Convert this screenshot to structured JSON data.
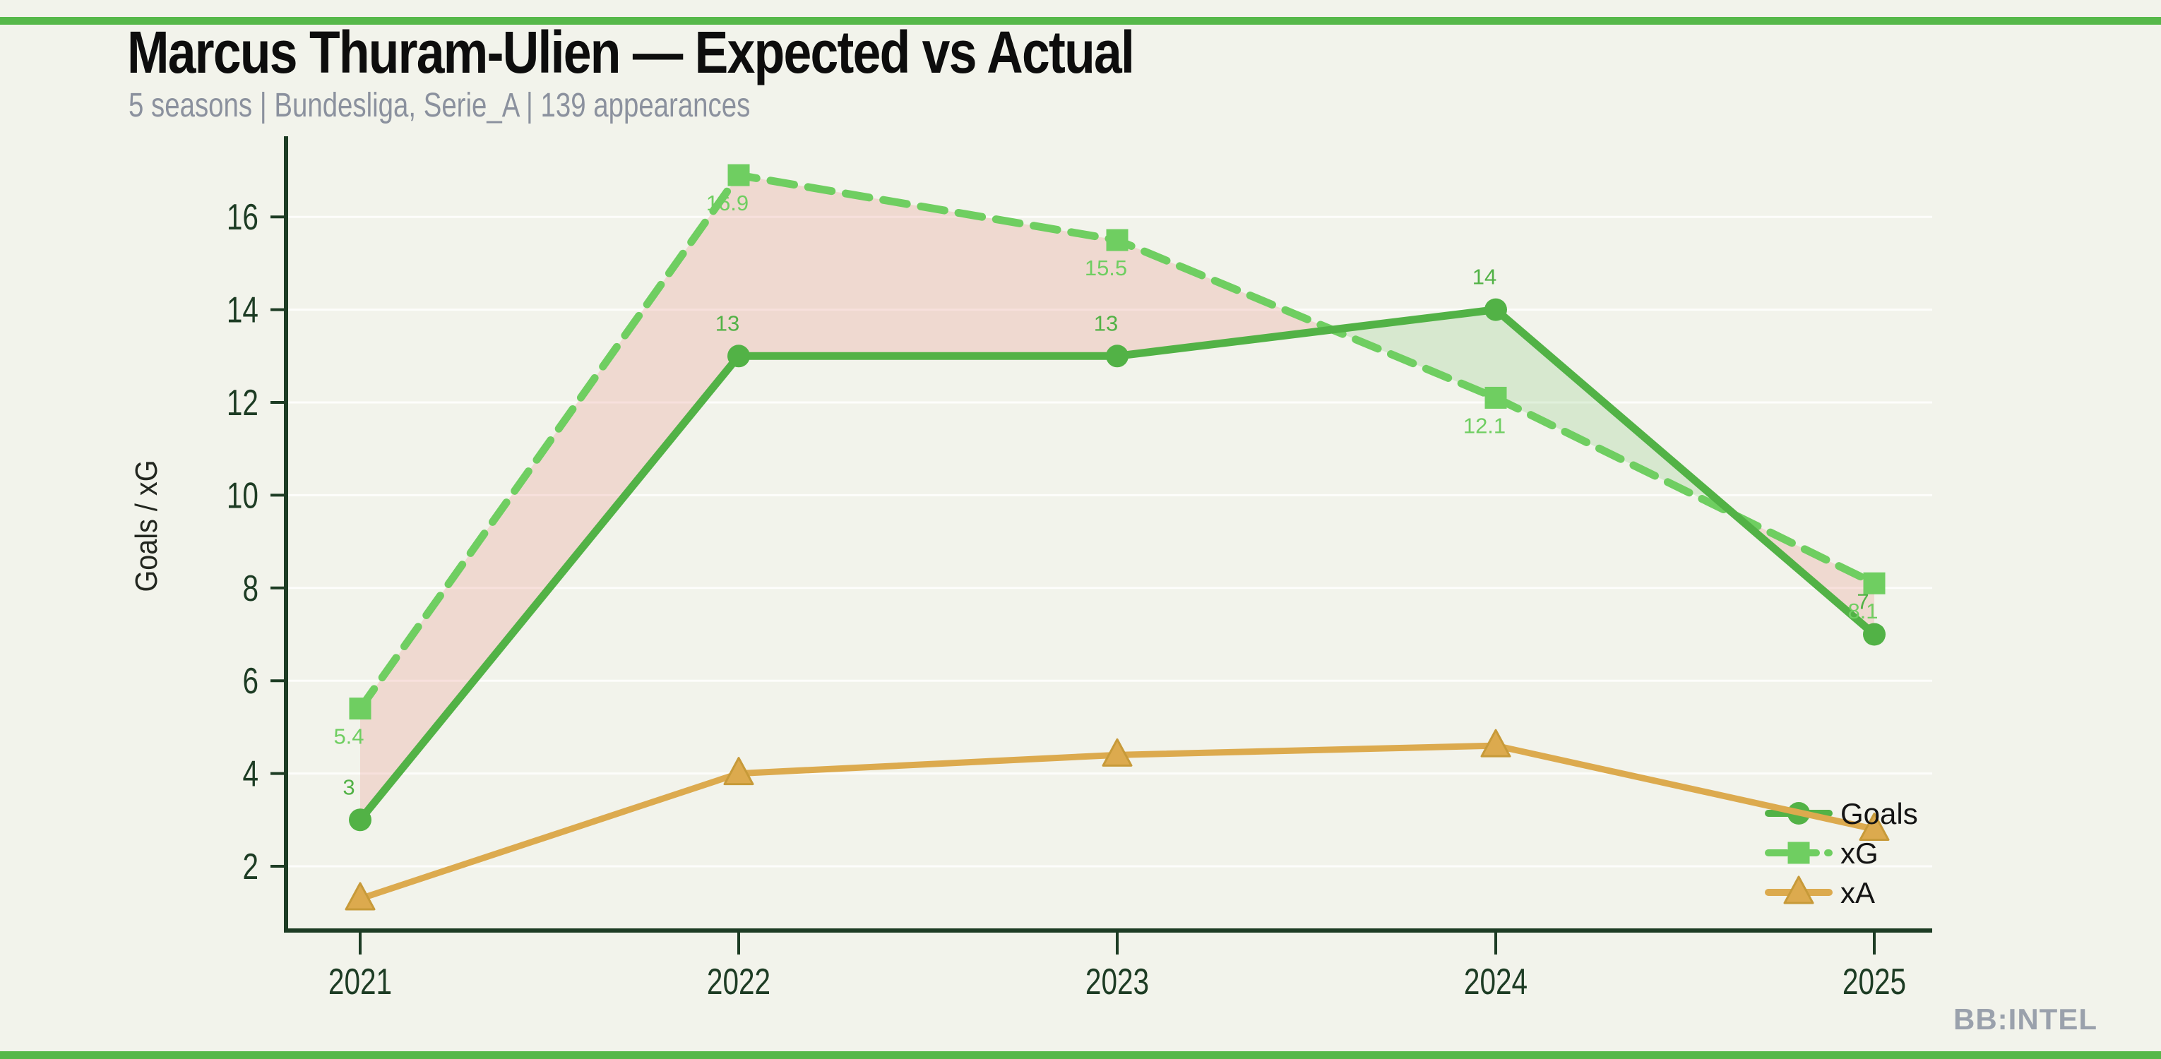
{
  "header": {
    "title": "Marcus Thuram-Ulien — Expected vs Actual",
    "subtitle": "5 seasons | Bundesliga, Serie_A | 139 appearances"
  },
  "footer": {
    "watermark": "BB:INTEL"
  },
  "colors": {
    "background": "#f2f3eb",
    "accent_bar": "#56b84a",
    "goals": "#52b246",
    "xg": "#6fce61",
    "xa": "#dcaa4e",
    "xa_marker_edge": "#c79a39",
    "axis": "#1d3c24",
    "title": "#0d0d0d",
    "subtitle": "#8b919e",
    "watermark": "#9aa1ac",
    "legend_text": "#141414",
    "fill_goals_above_xg": "rgba(110,190,95,0.20)",
    "fill_xg_above_goals": "rgba(233,150,140,0.28)",
    "gridline": "rgba(255,255,255,0.8)"
  },
  "chart_data": {
    "type": "line",
    "title": "Marcus Thuram-Ulien — Expected vs Actual",
    "subtitle": "5 seasons | Bundesliga, Serie_A | 139 appearances",
    "categories": [
      "2021",
      "2022",
      "2023",
      "2024",
      "2025"
    ],
    "series": [
      {
        "name": "Goals",
        "values": [
          3,
          13,
          13,
          14,
          7
        ],
        "labels": [
          "3",
          "13",
          "13",
          "14",
          "7"
        ],
        "label_position": "above",
        "color": "#52b246",
        "marker": "circle",
        "line_style": "solid",
        "line_width": 11
      },
      {
        "name": "xG",
        "values": [
          5.4,
          16.9,
          15.5,
          12.1,
          8.1
        ],
        "labels": [
          "5.4",
          "16.9",
          "15.5",
          "12.1",
          "8.1"
        ],
        "label_position": "below",
        "color": "#6fce61",
        "marker": "square",
        "line_style": "dashed",
        "line_width": 11
      },
      {
        "name": "xA",
        "values": [
          1.3,
          4.0,
          4.4,
          4.6,
          2.8
        ],
        "labels": [],
        "label_position": "none",
        "color": "#dcaa4e",
        "marker": "triangle",
        "line_style": "solid",
        "line_width": 9
      }
    ],
    "ylabel": "Goals / xG",
    "xlabel": "",
    "y_ticks": [
      2,
      4,
      6,
      8,
      10,
      12,
      14,
      16
    ],
    "ylim": [
      0.6,
      17.7
    ],
    "grid": "faint horizontal white lines",
    "legend": {
      "position": "lower right",
      "entries": [
        "Goals",
        "xG",
        "xA"
      ]
    },
    "fill_between": {
      "description": "area between Goals and xG",
      "xg_above_goals_color": "pink",
      "goals_above_xg_color": "light green"
    }
  }
}
